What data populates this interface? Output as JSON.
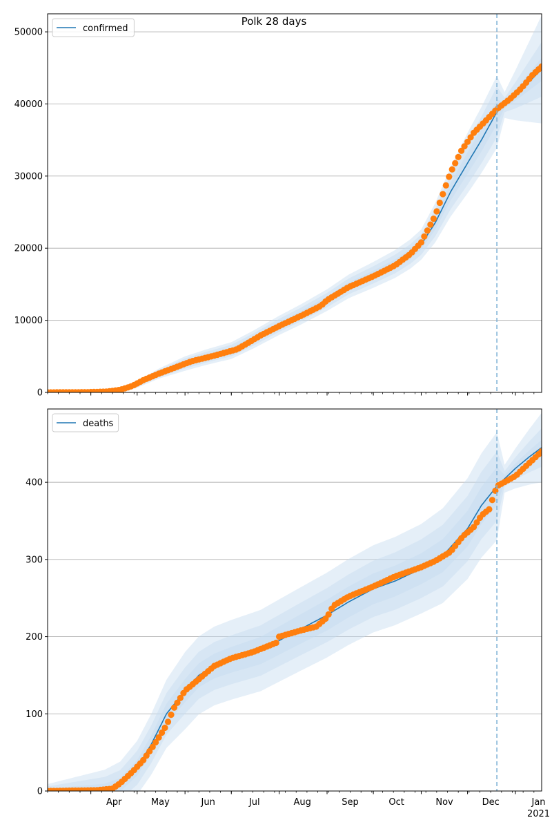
{
  "title": "Polk 28 days",
  "x_axis": {
    "month_labels": [
      "Apr",
      "May",
      "Jun",
      "Jul",
      "Aug",
      "Sep",
      "Oct",
      "Nov",
      "Dec",
      "Jan"
    ],
    "year_label": "2021"
  },
  "colors": {
    "line": "#1f77b4",
    "band": "#c6dbef",
    "observed": "#ff7f0e",
    "vline": "#7fb2d6",
    "grid": "#b0b0b0"
  },
  "chart_data": [
    {
      "type": "line",
      "legend_label": "confirmed",
      "legend_position": "upper left",
      "x_domain": [
        "2020-03-04",
        "2021-01-18"
      ],
      "ylim": [
        0,
        52500
      ],
      "yticks": [
        0,
        10000,
        20000,
        30000,
        40000,
        50000
      ],
      "grid": "horizontal",
      "forecast_start": "2020-12-20",
      "model": [
        [
          "2020-03-04",
          0
        ],
        [
          "2020-04-01",
          60
        ],
        [
          "2020-04-20",
          300
        ],
        [
          "2020-05-01",
          1100
        ],
        [
          "2020-05-15",
          2600
        ],
        [
          "2020-06-01",
          4000
        ],
        [
          "2020-06-15",
          4900
        ],
        [
          "2020-07-01",
          5800
        ],
        [
          "2020-07-15",
          7300
        ],
        [
          "2020-08-01",
          9300
        ],
        [
          "2020-08-15",
          10800
        ],
        [
          "2020-09-01",
          12800
        ],
        [
          "2020-09-15",
          14700
        ],
        [
          "2020-10-01",
          16300
        ],
        [
          "2020-10-15",
          17800
        ],
        [
          "2020-10-25",
          19200
        ],
        [
          "2020-11-01",
          20500
        ],
        [
          "2020-11-10",
          23500
        ],
        [
          "2020-11-20",
          27800
        ],
        [
          "2020-12-01",
          31800
        ],
        [
          "2020-12-10",
          35000
        ],
        [
          "2020-12-20",
          38900
        ],
        [
          "2021-01-01",
          41200
        ],
        [
          "2021-01-10",
          43100
        ],
        [
          "2021-01-18",
          44800
        ]
      ],
      "band_halfwidths": [
        [
          "2020-03-04",
          0,
          0,
          0
        ],
        [
          "2020-05-01",
          150,
          300,
          450
        ],
        [
          "2020-06-01",
          350,
          700,
          1000
        ],
        [
          "2020-09-01",
          500,
          1000,
          1500
        ],
        [
          "2020-11-01",
          700,
          1400,
          2100
        ],
        [
          "2020-12-01",
          1500,
          3000,
          4200
        ],
        [
          "2020-12-20",
          1700,
          3500,
          5000
        ],
        [
          "2020-12-25",
          400,
          1000,
          1800
        ],
        [
          "2021-01-18",
          1600,
          3800,
          7500
        ]
      ],
      "observed": [
        [
          "2020-03-04",
          0
        ],
        [
          "2020-03-30",
          30
        ],
        [
          "2020-04-12",
          120
        ],
        [
          "2020-04-20",
          350
        ],
        [
          "2020-04-28",
          900
        ],
        [
          "2020-05-05",
          1700
        ],
        [
          "2020-05-15",
          2600
        ],
        [
          "2020-05-25",
          3400
        ],
        [
          "2020-06-05",
          4300
        ],
        [
          "2020-06-20",
          5100
        ],
        [
          "2020-07-05",
          6000
        ],
        [
          "2020-07-20",
          7900
        ],
        [
          "2020-08-01",
          9200
        ],
        [
          "2020-08-15",
          10600
        ],
        [
          "2020-08-28",
          12000
        ],
        [
          "2020-09-01",
          12800
        ],
        [
          "2020-09-15",
          14600
        ],
        [
          "2020-10-01",
          16100
        ],
        [
          "2020-10-15",
          17600
        ],
        [
          "2020-10-25",
          19200
        ],
        [
          "2020-11-01",
          20800
        ],
        [
          "2020-11-10",
          24500
        ],
        [
          "2020-11-15",
          27500
        ],
        [
          "2020-11-20",
          30500
        ],
        [
          "2020-11-27",
          33500
        ],
        [
          "2020-12-05",
          36000
        ],
        [
          "2020-12-12",
          37500
        ],
        [
          "2020-12-20",
          39300
        ],
        [
          "2020-12-28",
          40600
        ],
        [
          "2021-01-05",
          42200
        ],
        [
          "2021-01-12",
          44000
        ],
        [
          "2021-01-18",
          45200
        ]
      ]
    },
    {
      "type": "line",
      "legend_label": "deaths",
      "legend_position": "upper left",
      "x_domain": [
        "2020-03-04",
        "2021-01-18"
      ],
      "ylim": [
        0,
        495
      ],
      "yticks": [
        0,
        100,
        200,
        300,
        400
      ],
      "grid": "horizontal",
      "forecast_start": "2020-12-20",
      "model": [
        [
          "2020-03-04",
          0
        ],
        [
          "2020-04-10",
          2
        ],
        [
          "2020-04-20",
          8
        ],
        [
          "2020-05-01",
          30
        ],
        [
          "2020-05-10",
          60
        ],
        [
          "2020-05-20",
          100
        ],
        [
          "2020-06-01",
          130
        ],
        [
          "2020-06-10",
          150
        ],
        [
          "2020-06-20",
          162
        ],
        [
          "2020-07-01",
          170
        ],
        [
          "2020-07-20",
          182
        ],
        [
          "2020-08-01",
          195
        ],
        [
          "2020-08-15",
          210
        ],
        [
          "2020-09-01",
          228
        ],
        [
          "2020-09-15",
          245
        ],
        [
          "2020-10-01",
          262
        ],
        [
          "2020-10-15",
          272
        ],
        [
          "2020-11-01",
          288
        ],
        [
          "2020-11-15",
          305
        ],
        [
          "2020-12-01",
          340
        ],
        [
          "2020-12-10",
          370
        ],
        [
          "2020-12-20",
          395
        ],
        [
          "2021-01-01",
          418
        ],
        [
          "2021-01-10",
          433
        ],
        [
          "2021-01-18",
          445
        ]
      ],
      "band_halfwidths": [
        [
          "2020-03-04",
          3,
          6,
          9
        ],
        [
          "2020-05-01",
          10,
          22,
          35
        ],
        [
          "2020-06-01",
          15,
          30,
          50
        ],
        [
          "2020-09-01",
          20,
          35,
          55
        ],
        [
          "2020-11-01",
          20,
          38,
          58
        ],
        [
          "2020-12-20",
          25,
          45,
          70
        ],
        [
          "2020-12-25",
          5,
          10,
          18
        ],
        [
          "2021-01-18",
          10,
          25,
          45
        ]
      ],
      "observed": [
        [
          "2020-03-04",
          0
        ],
        [
          "2020-04-05",
          1
        ],
        [
          "2020-04-15",
          3
        ],
        [
          "2020-04-20",
          10
        ],
        [
          "2020-04-28",
          25
        ],
        [
          "2020-05-05",
          40
        ],
        [
          "2020-05-12",
          60
        ],
        [
          "2020-05-20",
          85
        ],
        [
          "2020-05-25",
          108
        ],
        [
          "2020-06-01",
          130
        ],
        [
          "2020-06-10",
          145
        ],
        [
          "2020-06-20",
          162
        ],
        [
          "2020-07-01",
          172
        ],
        [
          "2020-07-15",
          180
        ],
        [
          "2020-07-25",
          188
        ],
        [
          "2020-07-30",
          192
        ],
        [
          "2020-08-01",
          200
        ],
        [
          "2020-08-15",
          208
        ],
        [
          "2020-08-25",
          213
        ],
        [
          "2020-09-01",
          225
        ],
        [
          "2020-09-05",
          240
        ],
        [
          "2020-09-15",
          252
        ],
        [
          "2020-10-01",
          265
        ],
        [
          "2020-10-15",
          278
        ],
        [
          "2020-11-01",
          290
        ],
        [
          "2020-11-10",
          298
        ],
        [
          "2020-11-20",
          310
        ],
        [
          "2020-11-28",
          330
        ],
        [
          "2020-12-05",
          342
        ],
        [
          "2020-12-10",
          357
        ],
        [
          "2020-12-15",
          365
        ],
        [
          "2020-12-20",
          395
        ],
        [
          "2021-01-01",
          408
        ],
        [
          "2021-01-10",
          425
        ],
        [
          "2021-01-18",
          440
        ]
      ]
    }
  ]
}
